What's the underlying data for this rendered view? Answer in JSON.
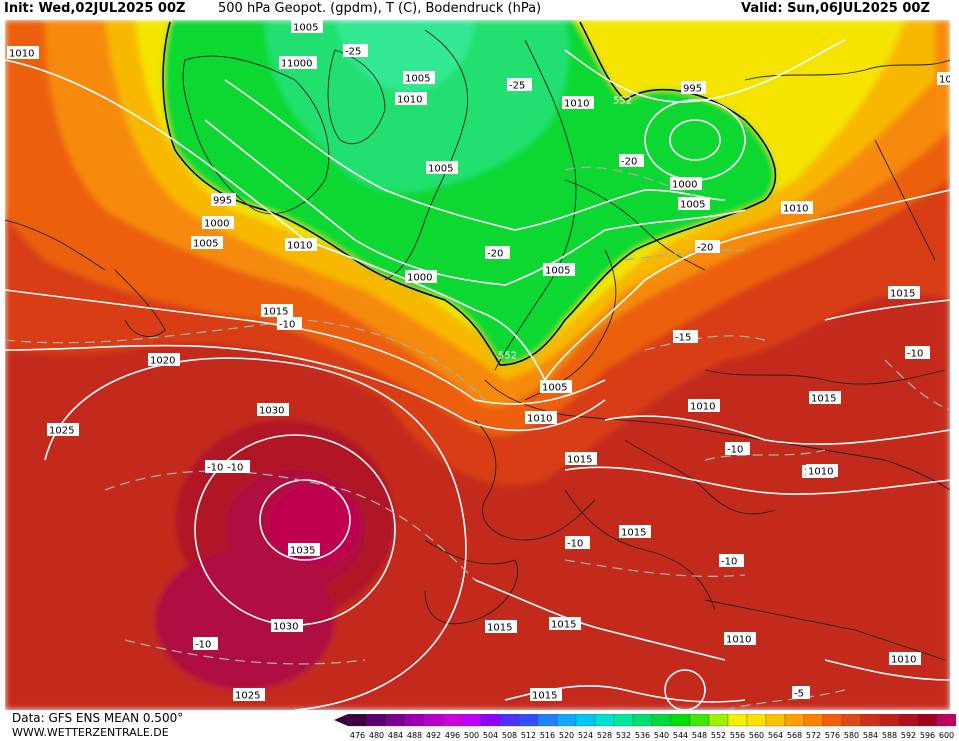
{
  "header": {
    "init": "Init: Wed,02JUL2025 00Z",
    "title": "500 hPa Geopot. (gpdm), T (C), Bodendruck (hPa)",
    "valid": "Valid: Sun,06JUL2025 00Z"
  },
  "footer": {
    "data_source": "Data: GFS ENS MEAN 0.500°",
    "site": "WWW.WETTERZENTRALE.DE"
  },
  "legend": {
    "values": [
      "476",
      "480",
      "484",
      "488",
      "492",
      "496",
      "500",
      "504",
      "508",
      "512",
      "516",
      "520",
      "524",
      "528",
      "532",
      "536",
      "540",
      "544",
      "548",
      "552",
      "556",
      "560",
      "564",
      "568",
      "572",
      "576",
      "580",
      "584",
      "588",
      "592",
      "596",
      "600"
    ],
    "colors": [
      "#3a0040",
      "#5a0070",
      "#7a0090",
      "#9a00b0",
      "#b800cc",
      "#d000e0",
      "#c000ff",
      "#9000ff",
      "#5030ff",
      "#3050ff",
      "#2080ff",
      "#10a8ff",
      "#00c8f0",
      "#00e0d0",
      "#00e8a0",
      "#00e070",
      "#00d840",
      "#00e000",
      "#40e800",
      "#a0f000",
      "#f0f000",
      "#ffe000",
      "#ffc000",
      "#ffa000",
      "#ff8000",
      "#f06000",
      "#e04818",
      "#d03018",
      "#c02018",
      "#b01020",
      "#a00020",
      "#c00060"
    ]
  },
  "pressure_labels": [
    "1010",
    "1005",
    "1000",
    "995",
    "1000",
    "1005",
    "1010",
    "1015",
    "1020",
    "1025",
    "1030",
    "1035",
    "1030",
    "1025",
    "1010",
    "1005",
    "1000",
    "1010",
    "1005",
    "995",
    "1000",
    "1005",
    "1010",
    "1005",
    "1000",
    "1005",
    "1010",
    "1015",
    "1010",
    "1015",
    "1015",
    "1015",
    "1015",
    "1015",
    "1010",
    "1010",
    "1015",
    "1015",
    "1010",
    "10"
  ],
  "temp_labels": [
    "-25",
    "-25",
    "-20",
    "-20",
    "-20",
    "-15",
    "-10",
    "-10",
    "-10",
    "-10",
    "-10",
    "-10",
    "-10",
    "-10",
    "-5"
  ],
  "geopot_labels": [
    "552",
    "552"
  ]
}
